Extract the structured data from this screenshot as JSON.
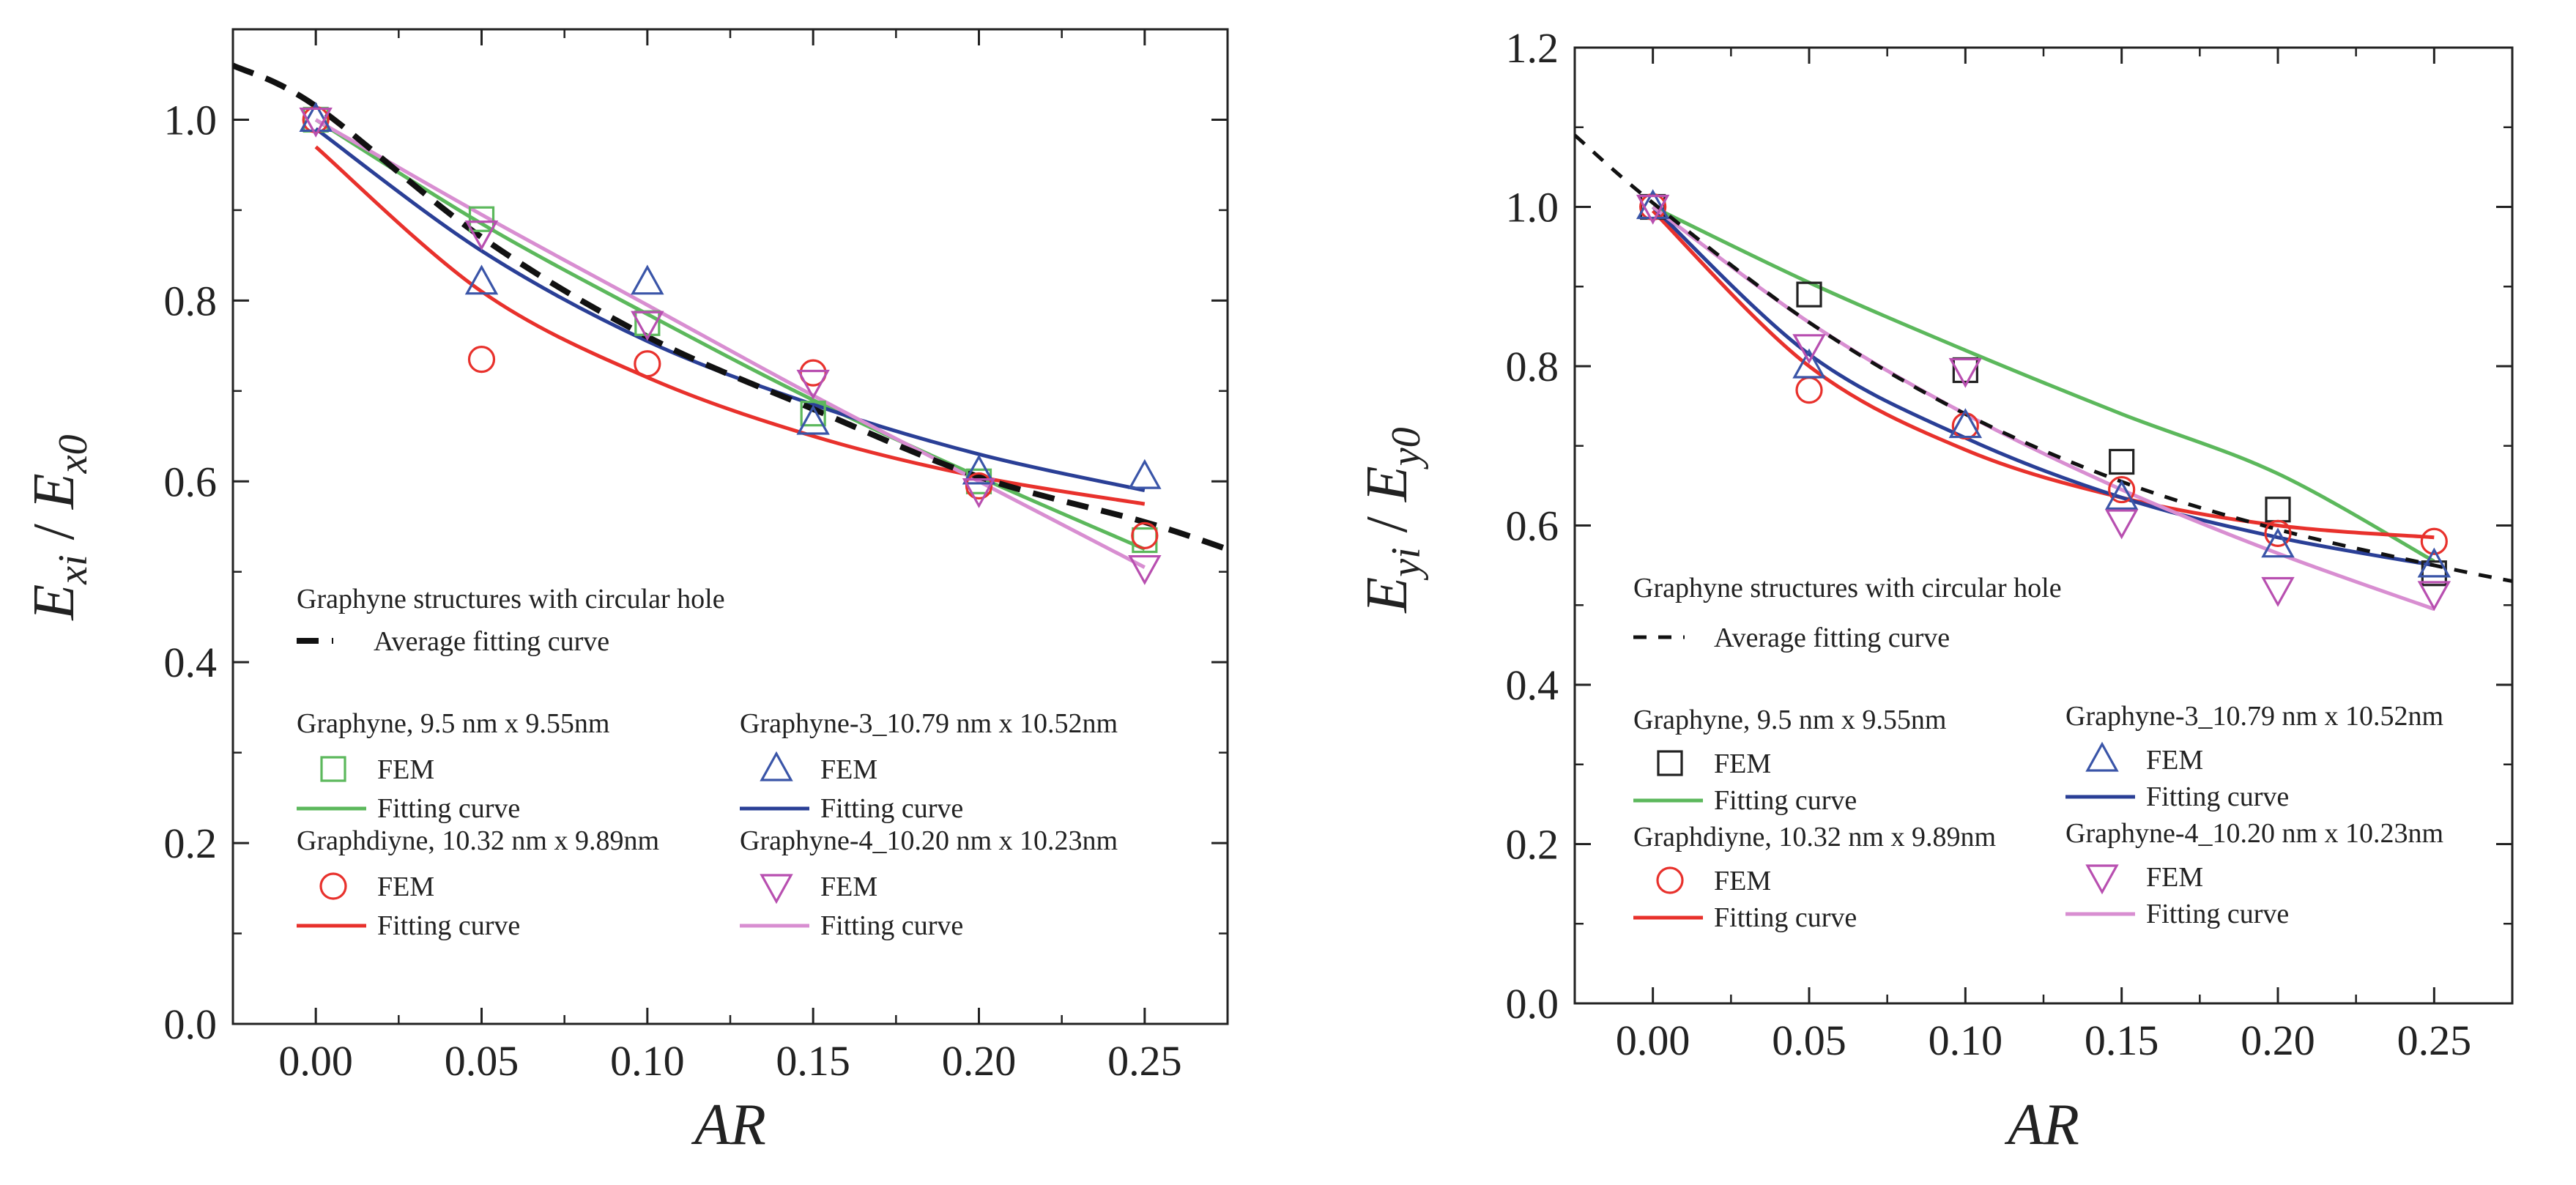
{
  "chart_data": [
    {
      "type": "scatter",
      "panel": "left",
      "xlabel": "AR",
      "ylabel": {
        "base1": "E",
        "sub1": "xi",
        "sep": " / ",
        "base2": "E",
        "sub2": "x0"
      },
      "xlim": [
        -0.025,
        0.275
      ],
      "ylim": [
        0.0,
        1.1
      ],
      "x_ticks": [
        "0.00",
        "0.05",
        "0.10",
        "0.15",
        "0.20",
        "0.25"
      ],
      "y_ticks": [
        "0.0",
        "0.2",
        "0.4",
        "0.6",
        "0.8",
        "1.0"
      ],
      "legend": {
        "title": "Graphyne structures with circular hole",
        "average_label": "Average fitting curve",
        "average_style": "longdash",
        "fem_label": "FEM",
        "fitting_label": "Fitting curve"
      },
      "average_curve": {
        "points": [
          [
            -0.025,
            1.06
          ],
          [
            0.0,
            1.015
          ],
          [
            0.05,
            0.87
          ],
          [
            0.1,
            0.76
          ],
          [
            0.15,
            0.68
          ],
          [
            0.2,
            0.605
          ],
          [
            0.25,
            0.555
          ],
          [
            0.275,
            0.525
          ]
        ]
      },
      "series": [
        {
          "name": "Graphyne,  9.5 nm x 9.55nm",
          "marker": "square",
          "color": "#5cb85c",
          "line_color": "#5cb85c",
          "fem": [
            [
              0.0,
              1.0
            ],
            [
              0.05,
              0.89
            ],
            [
              0.1,
              0.775
            ],
            [
              0.15,
              0.675
            ],
            [
              0.2,
              0.6
            ],
            [
              0.25,
              0.535
            ]
          ],
          "fit": [
            [
              0.0,
              1.0
            ],
            [
              0.05,
              0.885
            ],
            [
              0.1,
              0.785
            ],
            [
              0.15,
              0.69
            ],
            [
              0.2,
              0.605
            ],
            [
              0.25,
              0.525
            ]
          ]
        },
        {
          "name": "Graphdiyne, 10.32 nm x 9.89nm",
          "marker": "circle",
          "color": "#e8312c",
          "line_color": "#e8312c",
          "fem": [
            [
              0.0,
              1.0
            ],
            [
              0.05,
              0.735
            ],
            [
              0.1,
              0.73
            ],
            [
              0.15,
              0.72
            ],
            [
              0.2,
              0.595
            ],
            [
              0.25,
              0.54
            ]
          ],
          "fit": [
            [
              0.0,
              0.97
            ],
            [
              0.05,
              0.81
            ],
            [
              0.1,
              0.715
            ],
            [
              0.15,
              0.65
            ],
            [
              0.2,
              0.605
            ],
            [
              0.25,
              0.575
            ]
          ]
        },
        {
          "name": "Graphyne-3_10.79 nm x 10.52nm",
          "marker": "triangle-up",
          "color": "#3a55a8",
          "line_color": "#2a3f96",
          "fem": [
            [
              0.0,
              1.0
            ],
            [
              0.05,
              0.82
            ],
            [
              0.1,
              0.82
            ],
            [
              0.15,
              0.665
            ],
            [
              0.2,
              0.61
            ],
            [
              0.25,
              0.605
            ]
          ],
          "fit": [
            [
              0.0,
              0.99
            ],
            [
              0.05,
              0.855
            ],
            [
              0.1,
              0.755
            ],
            [
              0.15,
              0.685
            ],
            [
              0.2,
              0.63
            ],
            [
              0.25,
              0.59
            ]
          ]
        },
        {
          "name": "Graphyne-4_10.20 nm x 10.23nm",
          "marker": "triangle-down",
          "color": "#b84fb0",
          "line_color": "#d88ed1",
          "fem": [
            [
              0.0,
              1.0
            ],
            [
              0.05,
              0.875
            ],
            [
              0.1,
              0.775
            ],
            [
              0.15,
              0.71
            ],
            [
              0.2,
              0.59
            ],
            [
              0.25,
              0.505
            ]
          ],
          "fit": [
            [
              0.0,
              1.0
            ],
            [
              0.05,
              0.895
            ],
            [
              0.1,
              0.795
            ],
            [
              0.15,
              0.695
            ],
            [
              0.2,
              0.6
            ],
            [
              0.25,
              0.505
            ]
          ]
        }
      ]
    },
    {
      "type": "scatter",
      "panel": "right",
      "xlabel": "AR",
      "ylabel": {
        "base1": "E",
        "sub1": "yi",
        "sep": " / ",
        "base2": "E",
        "sub2": "y0"
      },
      "xlim": [
        -0.025,
        0.275
      ],
      "ylim": [
        0.0,
        1.2
      ],
      "x_ticks": [
        "0.00",
        "0.05",
        "0.10",
        "0.15",
        "0.20",
        "0.25"
      ],
      "y_ticks": [
        "0.0",
        "0.2",
        "0.4",
        "0.6",
        "0.8",
        "1.0",
        "1.2"
      ],
      "legend": {
        "title": "Graphyne structures with circular hole",
        "average_label": "Average fitting curve",
        "average_style": "dash",
        "fem_label": "FEM",
        "fitting_label": "Fitting curve"
      },
      "average_curve": {
        "points": [
          [
            -0.025,
            1.09
          ],
          [
            0.0,
            1.005
          ],
          [
            0.05,
            0.855
          ],
          [
            0.1,
            0.74
          ],
          [
            0.15,
            0.655
          ],
          [
            0.2,
            0.595
          ],
          [
            0.25,
            0.55
          ],
          [
            0.275,
            0.53
          ]
        ]
      },
      "series": [
        {
          "name": "Graphyne,  9.5 nm x 9.55nm",
          "marker": "square",
          "color": "#222222",
          "line_color": "#5cb85c",
          "fem": [
            [
              0.0,
              1.0
            ],
            [
              0.05,
              0.89
            ],
            [
              0.1,
              0.795
            ],
            [
              0.15,
              0.68
            ],
            [
              0.2,
              0.62
            ],
            [
              0.25,
              0.54
            ]
          ],
          "fit": [
            [
              0.0,
              1.0
            ],
            [
              0.05,
              0.905
            ],
            [
              0.1,
              0.82
            ],
            [
              0.15,
              0.74
            ],
            [
              0.2,
              0.665
            ],
            [
              0.25,
              0.555
            ]
          ]
        },
        {
          "name": "Graphdiyne, 10.32 nm x 9.89nm",
          "marker": "circle",
          "color": "#e8312c",
          "line_color": "#e8312c",
          "fem": [
            [
              0.0,
              1.0
            ],
            [
              0.05,
              0.77
            ],
            [
              0.1,
              0.725
            ],
            [
              0.15,
              0.645
            ],
            [
              0.2,
              0.59
            ],
            [
              0.25,
              0.58
            ]
          ],
          "fit": [
            [
              0.0,
              0.995
            ],
            [
              0.05,
              0.8
            ],
            [
              0.1,
              0.695
            ],
            [
              0.15,
              0.635
            ],
            [
              0.2,
              0.6
            ],
            [
              0.25,
              0.585
            ]
          ]
        },
        {
          "name": "Graphyne-3_10.79 nm x 10.52nm",
          "marker": "triangle-up",
          "color": "#3a55a8",
          "line_color": "#2a3f96",
          "fem": [
            [
              0.0,
              1.0
            ],
            [
              0.05,
              0.8
            ],
            [
              0.1,
              0.725
            ],
            [
              0.15,
              0.635
            ],
            [
              0.2,
              0.575
            ],
            [
              0.25,
              0.55
            ]
          ],
          "fit": [
            [
              0.0,
              1.0
            ],
            [
              0.05,
              0.815
            ],
            [
              0.1,
              0.71
            ],
            [
              0.15,
              0.635
            ],
            [
              0.2,
              0.585
            ],
            [
              0.25,
              0.55
            ]
          ]
        },
        {
          "name": "Graphyne-4_10.20 nm x 10.23nm",
          "marker": "triangle-down",
          "color": "#b84fb0",
          "line_color": "#d88ed1",
          "fem": [
            [
              0.0,
              1.0
            ],
            [
              0.05,
              0.825
            ],
            [
              0.1,
              0.795
            ],
            [
              0.15,
              0.605
            ],
            [
              0.2,
              0.52
            ],
            [
              0.25,
              0.515
            ]
          ],
          "fit": [
            [
              0.0,
              1.0
            ],
            [
              0.05,
              0.855
            ],
            [
              0.1,
              0.74
            ],
            [
              0.15,
              0.645
            ],
            [
              0.2,
              0.565
            ],
            [
              0.25,
              0.495
            ]
          ]
        }
      ]
    }
  ]
}
